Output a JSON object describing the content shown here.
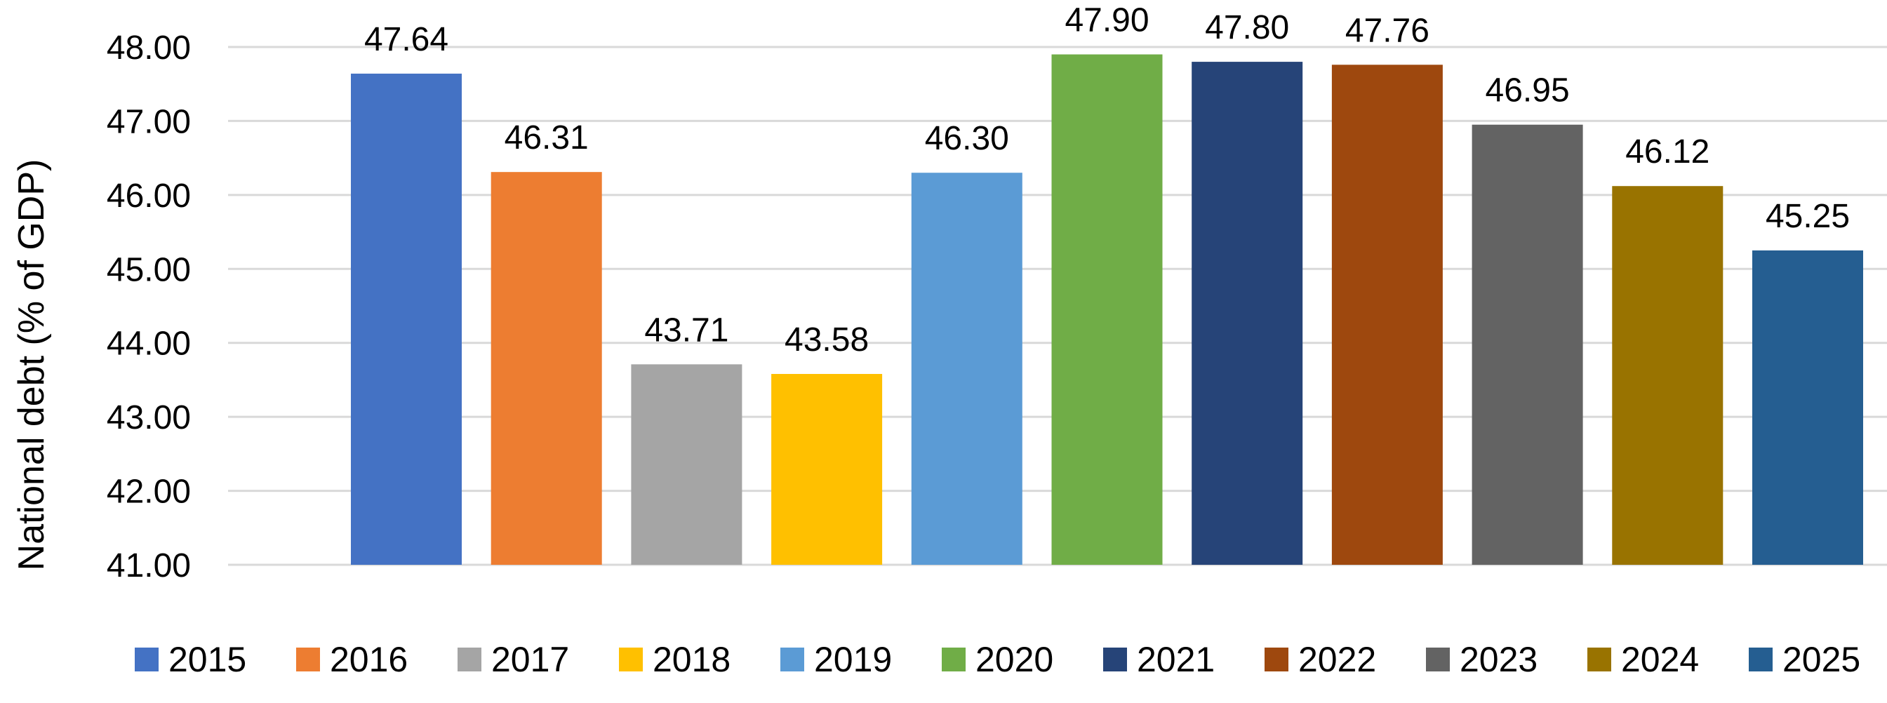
{
  "chart_data": {
    "type": "bar",
    "categories": [
      "2015",
      "2016",
      "2017",
      "2018",
      "2019",
      "2020",
      "2021",
      "2022",
      "2023",
      "2024",
      "2025"
    ],
    "values": [
      47.64,
      46.31,
      43.71,
      43.58,
      46.3,
      47.9,
      47.8,
      47.76,
      46.95,
      46.12,
      45.25
    ],
    "data_labels": [
      "47.64",
      "46.31",
      "43.71",
      "43.58",
      "46.30",
      "47.90",
      "47.80",
      "47.76",
      "46.95",
      "46.12",
      "45.25"
    ],
    "colors": [
      "#4472C4",
      "#ED7D31",
      "#A5A5A5",
      "#FFC000",
      "#5B9BD5",
      "#70AD47",
      "#264478",
      "#9E480E",
      "#636363",
      "#997300",
      "#255E91"
    ],
    "title": "",
    "xlabel": "",
    "ylabel": "National debt (% of GDP)",
    "ylim": [
      41,
      48
    ],
    "yticks": [
      "41.00",
      "42.00",
      "43.00",
      "44.00",
      "45.00",
      "46.00",
      "47.00",
      "48.00"
    ],
    "grid": true,
    "legend": {
      "position": "bottom",
      "entries": [
        "2015",
        "2016",
        "2017",
        "2018",
        "2019",
        "2020",
        "2021",
        "2022",
        "2023",
        "2024",
        "2025"
      ]
    }
  }
}
